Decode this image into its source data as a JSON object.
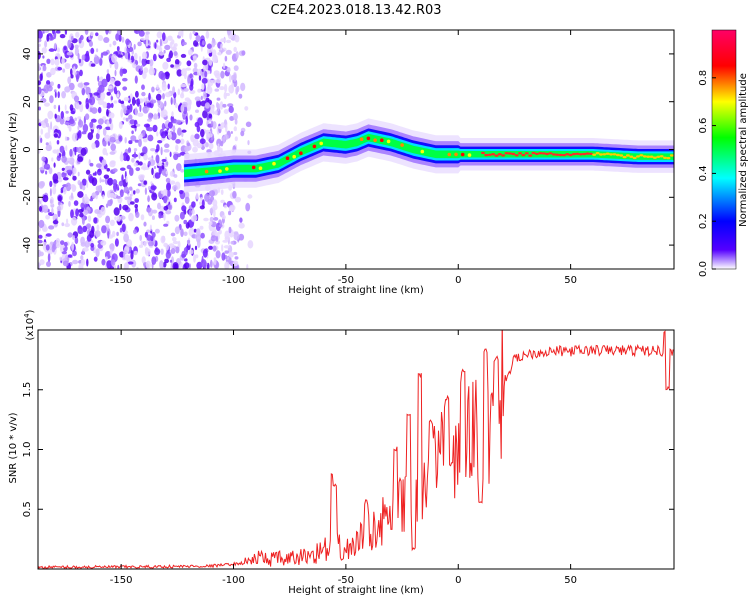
{
  "title": "C2E4.2023.018.13.42.R03",
  "chart_data": [
    {
      "type": "heatmap",
      "xlabel": "Height of straight line (km)",
      "ylabel": "Frequency (Hz)",
      "xlim": [
        -187,
        96
      ],
      "ylim": [
        -50,
        50
      ],
      "xticks": [
        -150,
        -100,
        -50,
        0,
        50
      ],
      "yticks": [
        -40,
        -20,
        0,
        20,
        40
      ],
      "colorbar": {
        "label": "Normalized spectral amplitude",
        "range": [
          0,
          1
        ],
        "ticks": [
          0.0,
          0.2,
          0.4,
          0.6,
          0.8
        ],
        "colors": [
          "#ffffff",
          "#5500ff",
          "#0000ff",
          "#00ffff",
          "#00ff00",
          "#ffff00",
          "#ff0000",
          "#ff0066"
        ]
      },
      "noise_region_x": [
        -187,
        -98
      ],
      "ridge": {
        "x": [
          -122,
          -110,
          -100,
          -95,
          -90,
          -80,
          -70,
          -60,
          -50,
          -45,
          -40,
          -35,
          -30,
          -20,
          -10,
          0,
          10,
          20,
          40,
          60,
          80,
          96
        ],
        "freq": [
          -10,
          -9,
          -8,
          -8,
          -8,
          -6,
          -1,
          3,
          2,
          3,
          5,
          4,
          3,
          0,
          -2,
          -2,
          -2,
          -2,
          -2,
          -2,
          -3,
          -3
        ]
      }
    },
    {
      "type": "line",
      "xlabel": "Height of straight line (km)",
      "ylabel": "SNR (10 * v/v)",
      "scale_label": "(x10",
      "scale_exp": "4",
      "scale_close": ")",
      "xlim": [
        -187,
        96
      ],
      "ylim": [
        0,
        20000
      ],
      "xticks": [
        -150,
        -100,
        -50,
        0,
        50
      ],
      "yticks": [
        0.5,
        1.0,
        1.5
      ],
      "ytick_labels": [
        "0.5",
        "1.0",
        "1.5"
      ],
      "color": "#ee2222",
      "trend": {
        "x": [
          -187,
          -140,
          -110,
          -95,
          -90,
          -75,
          -65,
          -55,
          -50,
          -40,
          -30,
          -20,
          -10,
          0,
          10,
          15,
          20,
          25,
          30,
          40,
          60,
          80,
          96
        ],
        "y": [
          150,
          180,
          250,
          500,
          900,
          800,
          1200,
          2000,
          1500,
          3000,
          4500,
          6000,
          8500,
          10500,
          12000,
          14000,
          15500,
          17500,
          18000,
          18200,
          18300,
          18300,
          18200
        ]
      },
      "spikes": [
        {
          "x": -56,
          "y": 8300
        },
        {
          "x": -55,
          "y": 7200
        },
        {
          "x": -41,
          "y": 5800
        },
        {
          "x": -28,
          "y": 10300
        },
        {
          "x": -22,
          "y": 13000
        },
        {
          "x": -17,
          "y": 16500
        },
        {
          "x": -12,
          "y": 12500
        },
        {
          "x": -5,
          "y": 14500
        },
        {
          "x": 2,
          "y": 16800
        },
        {
          "x": 12,
          "y": 18500
        },
        {
          "x": 17,
          "y": 17800
        },
        {
          "x": 92,
          "y": 19900
        }
      ],
      "dips": [
        {
          "x": -52,
          "y": 700
        },
        {
          "x": -20,
          "y": 1500
        },
        {
          "x": 10,
          "y": 5500
        },
        {
          "x": -3,
          "y": 8600
        },
        {
          "x": 93,
          "y": 15000
        }
      ]
    }
  ]
}
